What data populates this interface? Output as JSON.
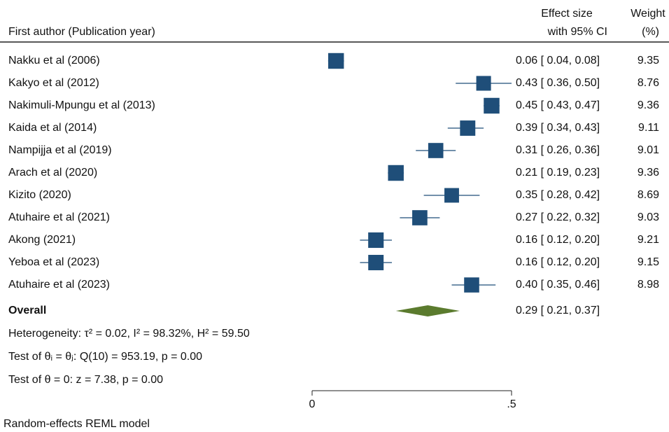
{
  "chart_data": {
    "type": "forest",
    "headers": {
      "study": "First author (Publication year)",
      "effect_top": "Effect size",
      "effect_bottom": "with 95% CI",
      "weight_top": "Weight",
      "weight_bottom": "(%)"
    },
    "categories": [
      "Nakku et al (2006)",
      "Kakyo et al (2012)",
      "Nakimuli-Mpungu et al (2013)",
      "Kaida et al (2014)",
      "Nampijja et al (2019)",
      "Arach et al (2020)",
      "Kizito (2020)",
      "Atuhaire et al (2021)",
      "Akong (2021)",
      "Yeboa et al (2023)",
      "Atuhaire et al (2023)"
    ],
    "values": [
      0.06,
      0.43,
      0.45,
      0.39,
      0.31,
      0.21,
      0.35,
      0.27,
      0.16,
      0.16,
      0.4
    ],
    "lower": [
      0.04,
      0.36,
      0.43,
      0.34,
      0.26,
      0.19,
      0.28,
      0.22,
      0.12,
      0.12,
      0.35
    ],
    "upper": [
      0.08,
      0.5,
      0.47,
      0.43,
      0.36,
      0.23,
      0.42,
      0.32,
      0.2,
      0.2,
      0.46
    ],
    "value_labels": [
      "0.06 [ 0.04, 0.08]",
      "0.43 [ 0.36, 0.50]",
      "0.45 [ 0.43, 0.47]",
      "0.39 [ 0.34, 0.43]",
      "0.31 [ 0.26, 0.36]",
      "0.21 [ 0.19, 0.23]",
      "0.35 [ 0.28, 0.42]",
      "0.27 [ 0.22, 0.32]",
      "0.16 [ 0.12, 0.20]",
      "0.16 [ 0.12, 0.20]",
      "0.40 [ 0.35, 0.46]"
    ],
    "weights": [
      9.35,
      8.76,
      9.36,
      9.11,
      9.01,
      9.36,
      8.69,
      9.03,
      9.21,
      9.15,
      8.98
    ],
    "overall": {
      "label": "Overall",
      "value": 0.29,
      "lower": 0.21,
      "upper": 0.37,
      "value_label": "0.29 [ 0.21, 0.37]"
    },
    "notes": [
      "Heterogeneity: τ² = 0.02, I² = 98.32%, H² = 59.50",
      "Test of θᵢ = θⱼ: Q(10) = 953.19, p = 0.00",
      "Test of θ = 0: z = 7.38, p = 0.00"
    ],
    "xlim": [
      0,
      0.5
    ],
    "xticks": [
      0,
      {
        "value": 0.5,
        "label": ".5"
      }
    ],
    "footnote": "Random-effects REML model",
    "color": "#1f4e79",
    "overall_color": "#5b7b2e"
  }
}
